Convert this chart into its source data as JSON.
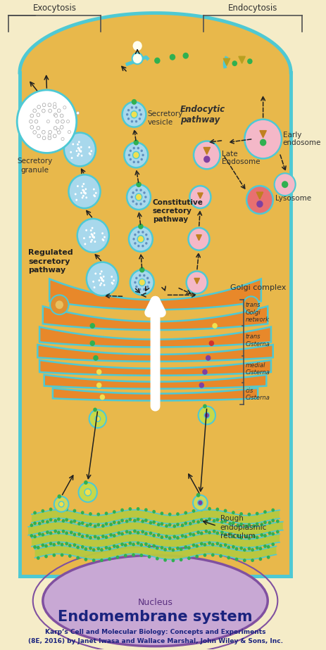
{
  "title": "Endomembrane system",
  "subtitle1": "Karp’s Cell and Molecular Biology: Concepts and Experiments",
  "subtitle2": "(8E, 2016) by Janet Iwasa and Wallace Marshal, John Wiley & Sons, Inc.",
  "bg_color": "#F5ECC8",
  "cell_fill": "#E8B84B",
  "cell_border": "#4EC9D4",
  "cell_border_lw": 3.5,
  "golgi_fill": "#E8882A",
  "golgi_outline": "#4EC9D4",
  "nucleus_fill": "#C8A8D4",
  "nucleus_outline": "#8050A0",
  "rer_fill": "#C8D44E",
  "rer_outline": "#4EC9D4",
  "vesicle_blue_fill": "#A8D8EC",
  "vesicle_blue_outline": "#4EC9D4",
  "vesicle_blue_inner": "#E8F4F8",
  "vesicle_pink_fill": "#F4B8C8",
  "vesicle_pink_outline": "#4EC9D4",
  "green_dot": "#30B050",
  "yellow_dot": "#F0E050",
  "purple_dot": "#8040A0",
  "red_dot": "#D03030",
  "orange_dot": "#E06820",
  "arrow_color": "#202020",
  "label_color": "#202020",
  "title_color": "#1a237e",
  "subtitle_color": "#1a237e",
  "bracket_color": "#505050",
  "white_arrow": "#FFFFFF"
}
